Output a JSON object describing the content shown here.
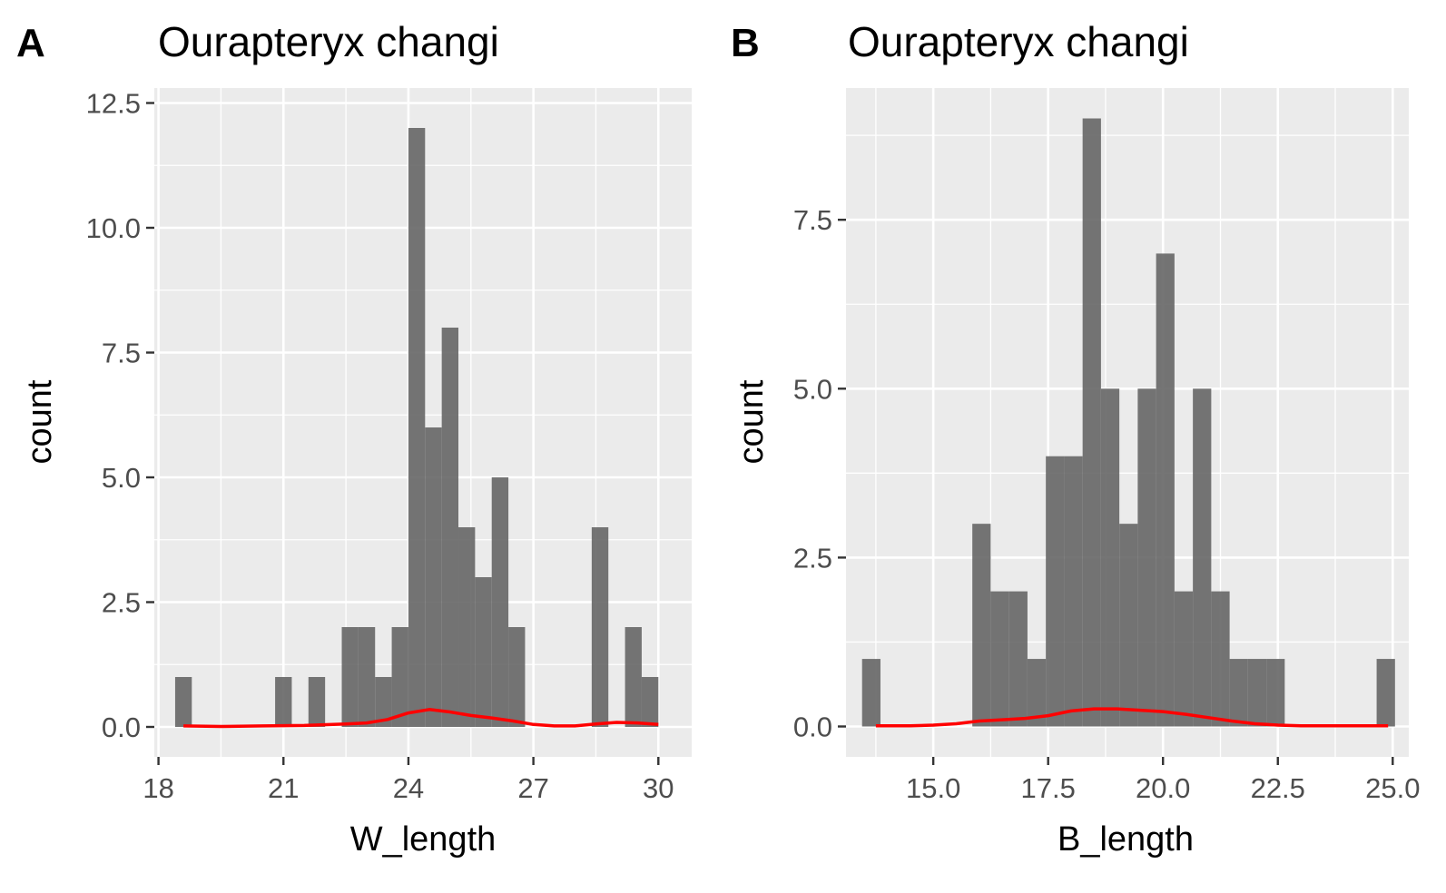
{
  "chart_data": [
    {
      "type": "bar",
      "panel_letter": "A",
      "title": "Ourapteryx changi",
      "xlabel": "W_length",
      "ylabel": "count",
      "xlim": [
        17.9,
        30.8
      ],
      "ylim": [
        -0.6,
        12.8
      ],
      "x_ticks": [
        18,
        21,
        24,
        27,
        30
      ],
      "x_tick_labels": [
        "18",
        "21",
        "24",
        "27",
        "30"
      ],
      "y_ticks": [
        0,
        2.5,
        5,
        7.5,
        10,
        12.5
      ],
      "y_tick_labels": [
        "0.0",
        "2.5",
        "5.0",
        "7.5",
        "10.0",
        "12.5"
      ],
      "grid": true,
      "bar_color": "#666666",
      "density_color": "#ff0000",
      "bins": [
        {
          "x0": 18.4,
          "x1": 18.8,
          "count": 1
        },
        {
          "x0": 20.8,
          "x1": 21.2,
          "count": 1
        },
        {
          "x0": 21.6,
          "x1": 22.0,
          "count": 1
        },
        {
          "x0": 22.4,
          "x1": 22.8,
          "count": 2
        },
        {
          "x0": 22.8,
          "x1": 23.2,
          "count": 2
        },
        {
          "x0": 23.2,
          "x1": 23.6,
          "count": 1
        },
        {
          "x0": 23.6,
          "x1": 24.0,
          "count": 2
        },
        {
          "x0": 24.0,
          "x1": 24.4,
          "count": 12
        },
        {
          "x0": 24.4,
          "x1": 24.8,
          "count": 6
        },
        {
          "x0": 24.8,
          "x1": 25.2,
          "count": 8
        },
        {
          "x0": 25.2,
          "x1": 25.6,
          "count": 4
        },
        {
          "x0": 25.6,
          "x1": 26.0,
          "count": 3
        },
        {
          "x0": 26.0,
          "x1": 26.4,
          "count": 5
        },
        {
          "x0": 26.4,
          "x1": 26.8,
          "count": 2
        },
        {
          "x0": 28.4,
          "x1": 28.8,
          "count": 4
        },
        {
          "x0": 29.2,
          "x1": 29.6,
          "count": 2
        },
        {
          "x0": 29.6,
          "x1": 30.0,
          "count": 1
        }
      ],
      "density": {
        "x": [
          18.6,
          19.5,
          20.5,
          21.5,
          22.5,
          23.0,
          23.5,
          24.0,
          24.5,
          25.0,
          25.5,
          26.0,
          26.5,
          27.0,
          27.5,
          28.0,
          28.5,
          29.0,
          29.5,
          30.0
        ],
        "y": [
          0.02,
          0.01,
          0.02,
          0.03,
          0.06,
          0.08,
          0.15,
          0.28,
          0.35,
          0.3,
          0.23,
          0.18,
          0.12,
          0.05,
          0.02,
          0.02,
          0.06,
          0.09,
          0.08,
          0.05
        ]
      }
    },
    {
      "type": "bar",
      "panel_letter": "B",
      "title": "Ourapteryx changi",
      "xlabel": "B_length",
      "ylabel": "count",
      "xlim": [
        13.1,
        25.35
      ],
      "ylim": [
        -0.45,
        9.45
      ],
      "x_ticks": [
        15,
        17.5,
        20,
        22.5,
        25
      ],
      "x_tick_labels": [
        "15.0",
        "17.5",
        "20.0",
        "22.5",
        "25.0"
      ],
      "y_ticks": [
        0,
        2.5,
        5,
        7.5
      ],
      "y_tick_labels": [
        "0.0",
        "2.5",
        "5.0",
        "7.5"
      ],
      "grid": true,
      "bar_color": "#666666",
      "density_color": "#ff0000",
      "bins": [
        {
          "x0": 13.45,
          "x1": 13.85,
          "count": 1
        },
        {
          "x0": 15.85,
          "x1": 16.25,
          "count": 3
        },
        {
          "x0": 16.25,
          "x1": 16.65,
          "count": 2
        },
        {
          "x0": 16.65,
          "x1": 17.05,
          "count": 2
        },
        {
          "x0": 17.05,
          "x1": 17.45,
          "count": 1
        },
        {
          "x0": 17.45,
          "x1": 17.85,
          "count": 4
        },
        {
          "x0": 17.85,
          "x1": 18.25,
          "count": 4
        },
        {
          "x0": 18.25,
          "x1": 18.65,
          "count": 9
        },
        {
          "x0": 18.65,
          "x1": 19.05,
          "count": 5
        },
        {
          "x0": 19.05,
          "x1": 19.45,
          "count": 3
        },
        {
          "x0": 19.45,
          "x1": 19.85,
          "count": 5
        },
        {
          "x0": 19.85,
          "x1": 20.25,
          "count": 7
        },
        {
          "x0": 20.25,
          "x1": 20.65,
          "count": 2
        },
        {
          "x0": 20.65,
          "x1": 21.05,
          "count": 5
        },
        {
          "x0": 21.05,
          "x1": 21.45,
          "count": 2
        },
        {
          "x0": 21.45,
          "x1": 21.85,
          "count": 1
        },
        {
          "x0": 21.85,
          "x1": 22.25,
          "count": 1
        },
        {
          "x0": 22.25,
          "x1": 22.65,
          "count": 1
        },
        {
          "x0": 24.65,
          "x1": 25.05,
          "count": 1
        }
      ],
      "density": {
        "x": [
          13.75,
          14.5,
          15.0,
          15.5,
          16.0,
          16.5,
          17.0,
          17.5,
          18.0,
          18.5,
          19.0,
          19.5,
          20.0,
          20.5,
          21.0,
          21.5,
          22.0,
          22.5,
          23.0,
          24.0,
          24.9
        ],
        "y": [
          0.01,
          0.01,
          0.02,
          0.04,
          0.08,
          0.1,
          0.12,
          0.16,
          0.23,
          0.26,
          0.26,
          0.24,
          0.22,
          0.18,
          0.13,
          0.08,
          0.04,
          0.02,
          0.01,
          0.01,
          0.01
        ]
      }
    }
  ]
}
